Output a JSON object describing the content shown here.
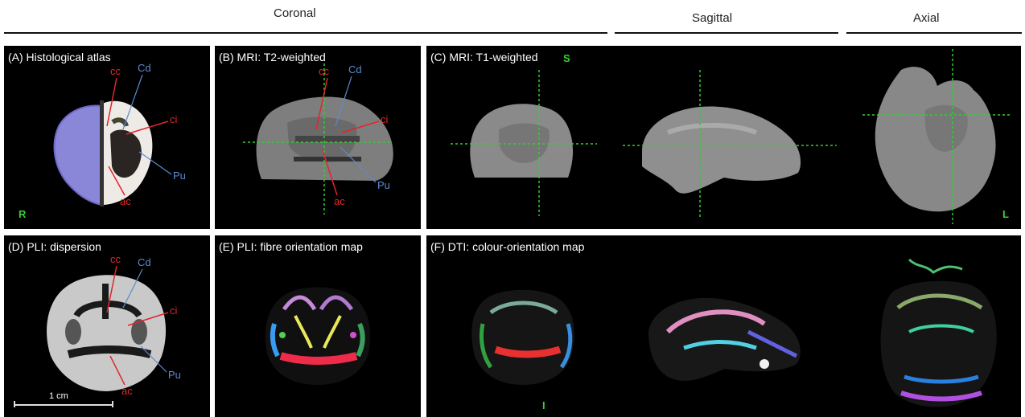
{
  "headers": {
    "coronal": "Coronal",
    "sagittal": "Sagittal",
    "axial": "Axial"
  },
  "panels": {
    "a": {
      "title": "(A) Histological atlas"
    },
    "b": {
      "title": "(B) MRI:  T2-weighted"
    },
    "c": {
      "title": "(C) MRI: T1-weighted"
    },
    "d": {
      "title": "(D) PLI: dispersion"
    },
    "e": {
      "title": "(E) PLI: fibre orientation map"
    },
    "f": {
      "title": "(F) DTI: colour-orientation map"
    }
  },
  "labels": {
    "cc": "cc",
    "cd": "Cd",
    "ci": "ci",
    "pu": "Pu",
    "ac": "ac"
  },
  "orientation": {
    "superior": "S",
    "inferior": "I",
    "right": "R",
    "left": "L"
  },
  "scale_bar": {
    "label": "1 cm"
  },
  "colors": {
    "red_label": "#e0262b",
    "blue_label": "#5b8bd0",
    "crosshair": "#2fd12f",
    "orient": "#35d135"
  }
}
